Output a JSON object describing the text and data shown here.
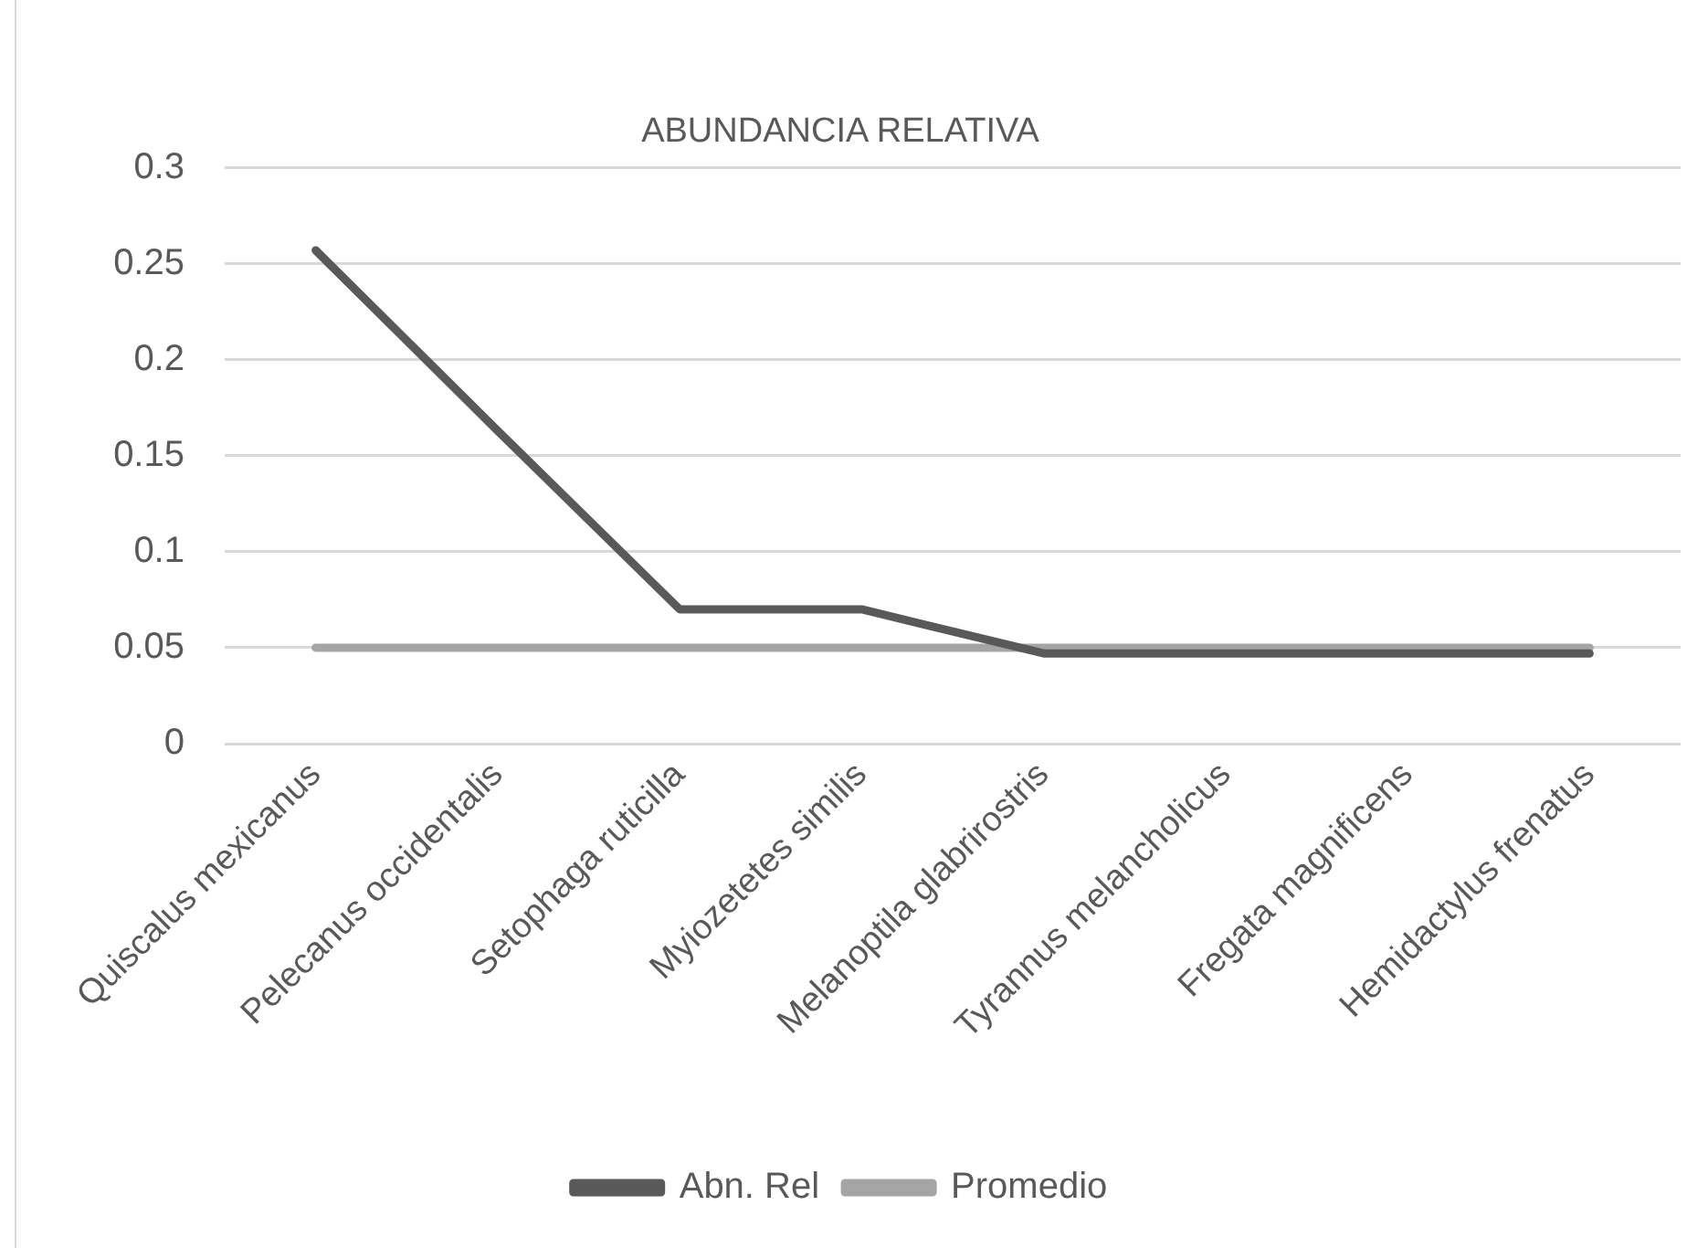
{
  "chart_data": {
    "type": "line",
    "title": "ABUNDANCIA RELATIVA",
    "categories": [
      "Quiscalus mexicanus",
      "Pelecanus occidentalis",
      "Setophaga ruticilla",
      "Myiozetetes similis",
      "Melanoptila glabrirostris",
      "Tyrannus melancholicus",
      "Fregata magnificens",
      "Hemidactylus frenatus"
    ],
    "series": [
      {
        "name": "Abn. Rel",
        "color": "#595959",
        "values": [
          0.257,
          0.163,
          0.07,
          0.07,
          0.047,
          0.047,
          0.047,
          0.047
        ]
      },
      {
        "name": "Promedio",
        "color": "#a5a5a5",
        "values": [
          0.05,
          0.05,
          0.05,
          0.05,
          0.05,
          0.05,
          0.05,
          0.05
        ]
      }
    ],
    "ylim": [
      0,
      0.3
    ],
    "yticks": [
      0,
      0.05,
      0.1,
      0.15,
      0.2,
      0.25,
      0.3
    ],
    "grid": "y",
    "legend": "bottom",
    "marker": "none"
  }
}
